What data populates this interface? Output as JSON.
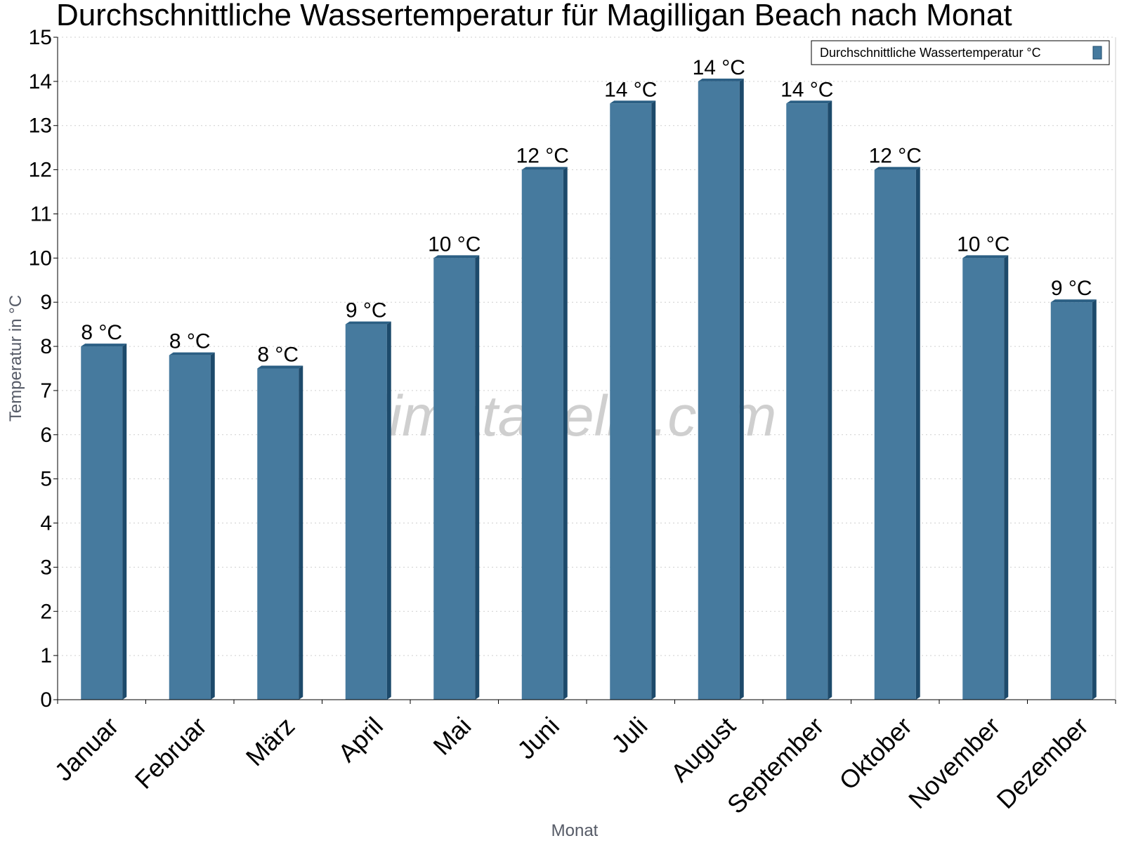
{
  "colors": {
    "bar_face": "#467a9e",
    "bar_side": "#1d4a6b",
    "bar_top": "#2b5f84",
    "grid": "#cfcfcf",
    "axis": "#000000",
    "watermark": "#cfcfcf"
  },
  "watermark": "klimatabelle.com",
  "chart_data": {
    "type": "bar",
    "title": "Durchschnittliche Wassertemperatur für Magilligan Beach nach Monat",
    "xlabel": "Monat",
    "ylabel": "Temperatur in °C",
    "ylim": [
      0,
      15
    ],
    "yticks": [
      "0",
      "1",
      "2",
      "3",
      "4",
      "5",
      "6",
      "7",
      "8",
      "9",
      "10",
      "11",
      "12",
      "13",
      "14",
      "15"
    ],
    "grid": "horizontal dotted",
    "legend_position": "top-right",
    "categories": [
      "Januar",
      "Februar",
      "März",
      "April",
      "Mai",
      "Juni",
      "Juli",
      "August",
      "September",
      "Oktober",
      "November",
      "Dezember"
    ],
    "series": [
      {
        "name": "Durchschnittliche Wassertemperatur °C",
        "values": [
          8,
          7.8,
          7.5,
          8.5,
          10,
          12,
          13.5,
          14,
          13.5,
          12,
          10,
          9
        ],
        "labels": [
          "8 °C",
          "8 °C",
          "8 °C",
          "9 °C",
          "10 °C",
          "12 °C",
          "14 °C",
          "14 °C",
          "14 °C",
          "12 °C",
          "10 °C",
          "9 °C"
        ]
      }
    ]
  }
}
